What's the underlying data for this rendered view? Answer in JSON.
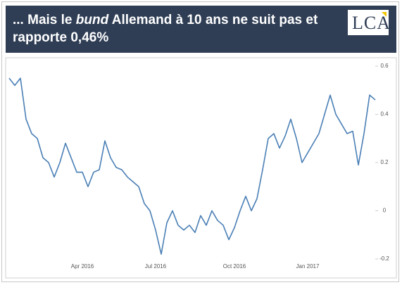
{
  "header": {
    "title_parts": [
      "... Mais le ",
      "bund",
      " Allemand à 10 ans ne suit pas et rapporte 0,46%"
    ],
    "logo": "LCA"
  },
  "chart_data": {
    "type": "line",
    "categories": [
      null,
      null,
      null,
      null,
      null,
      null,
      null,
      null,
      null,
      null,
      null,
      null,
      null,
      "Apr 2016",
      null,
      null,
      null,
      null,
      null,
      null,
      null,
      null,
      null,
      null,
      null,
      null,
      "Jul 2016",
      null,
      null,
      null,
      null,
      null,
      null,
      null,
      null,
      null,
      null,
      null,
      null,
      null,
      "Oct 2016",
      null,
      null,
      null,
      null,
      null,
      null,
      null,
      null,
      null,
      null,
      null,
      null,
      "Jan 2017",
      null,
      null,
      null,
      null,
      null,
      null,
      null,
      null,
      null,
      null,
      null,
      null
    ],
    "series": [
      {
        "color": "#4a7fb5",
        "values": [
          0.55,
          0.52,
          0.55,
          0.38,
          0.32,
          0.3,
          0.22,
          0.2,
          0.14,
          0.2,
          0.28,
          0.22,
          0.16,
          0.16,
          0.1,
          0.16,
          0.17,
          0.29,
          0.22,
          0.18,
          0.17,
          0.14,
          0.12,
          0.1,
          0.03,
          0.0,
          -0.08,
          -0.18,
          -0.05,
          0.0,
          -0.06,
          -0.08,
          -0.06,
          -0.09,
          -0.02,
          -0.06,
          0.0,
          -0.04,
          -0.06,
          -0.12,
          -0.07,
          0.0,
          0.06,
          0.0,
          0.05,
          0.17,
          0.3,
          0.32,
          0.26,
          0.31,
          0.38,
          0.3,
          0.2,
          0.24,
          0.28,
          0.32,
          0.4,
          0.48,
          0.4,
          0.36,
          0.32,
          0.33,
          0.19,
          0.32,
          0.48,
          0.46
        ]
      }
    ],
    "ylim": [
      -0.2,
      0.6
    ],
    "yticks": [
      0.6,
      0.4,
      0.2,
      0,
      -0.2
    ]
  }
}
